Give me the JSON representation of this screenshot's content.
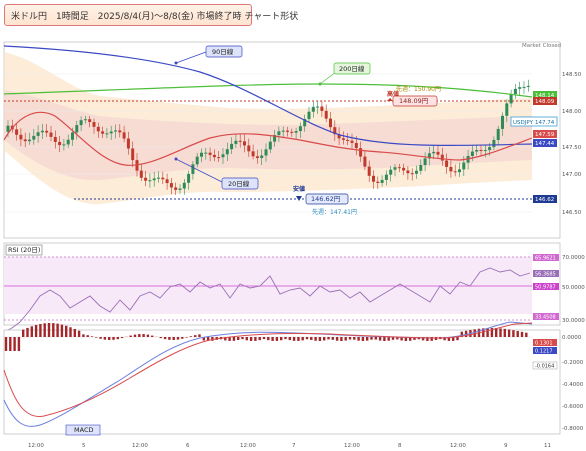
{
  "header": {
    "title": "米ドル円　1時間足　2025/8/4(月)～8/8(金) 市場終了時 チャート形状"
  },
  "main_chart": {
    "status": "Market Closed",
    "price_ticks": [
      "148.50",
      "148.00",
      "147.50",
      "147.00",
      "146.50"
    ],
    "price_labels": {
      "ma200": "148.14",
      "high_line": "148.09",
      "current": "147.74",
      "ma20": "147.59",
      "ma90": "147.44",
      "low_line": "146.62"
    },
    "symbol": "USDJPY",
    "annotations": {
      "ma90_label": "90日線",
      "ma200_label": "200日線",
      "ma20_label": "20日線",
      "high_label": "高値",
      "high_value": "148.09円",
      "prev_week_high": "先週：150.90円",
      "low_label": "安値",
      "low_value": "146.62円",
      "prev_week_low": "先週：147.41円"
    },
    "colors": {
      "ma90": "#3b49c4",
      "ma200": "#4cbf3a",
      "ma20": "#d94a4a",
      "bull": "#2e8b57",
      "bear": "#c0392b",
      "high": "#c0392b",
      "low": "#1f3a93"
    }
  },
  "rsi": {
    "title": "RSI (20日)",
    "ticks": [
      "70.0000",
      "50.0000",
      "30.0000"
    ],
    "labels": {
      "upper": "65.9621",
      "value": "56.3685",
      "mid": "50.9787",
      "lower": "33.4508"
    }
  },
  "macd": {
    "title": "MACD",
    "ticks": [
      "0.0000",
      "-0.2000",
      "-0.4000",
      "-0.6000",
      "-0.8000"
    ],
    "labels": {
      "signal": "0.1301",
      "macd": "0.1217",
      "hist": "-0.0164"
    }
  },
  "x_axis": {
    "labels": [
      "12:00",
      "5",
      "12:00",
      "6",
      "12:00",
      "7",
      "12:00",
      "8",
      "12:00",
      "9",
      "11"
    ]
  }
}
